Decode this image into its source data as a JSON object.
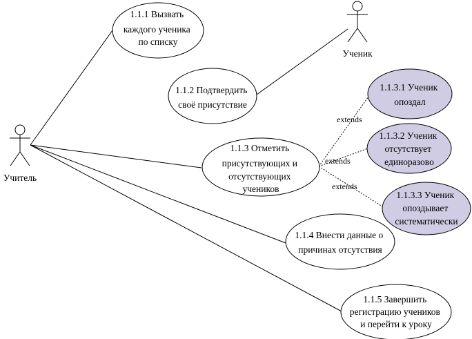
{
  "actors": {
    "teacher": "Учитель",
    "student": "Ученик"
  },
  "use_cases": {
    "uc1": [
      "1.1.1 Вызвать",
      "каждого ученика",
      "по списку"
    ],
    "uc2": [
      "1.1.2 Подтвердить",
      "своё присутствие"
    ],
    "uc3": [
      "1.1.3 Отметить",
      "присутствующих и",
      "отсутствующих",
      "учеников"
    ],
    "uc4": [
      "1.1.4 Внести данные о",
      "причинах отсутствия"
    ],
    "uc5": [
      "1.1.5 Завершить",
      "регистрацию учеников",
      "и перейти к уроку"
    ],
    "ext1": [
      "1.1.3.1 Ученик",
      "опоздал"
    ],
    "ext2": [
      "1.1.3.2 Ученик",
      "отсутствует",
      "единоразово"
    ],
    "ext3": [
      "1.1.3.3 Ученик",
      "опоздывает",
      "систематически"
    ]
  },
  "relations": {
    "extends_1": "extends",
    "extends_2": "extends",
    "extends_3": "extends"
  },
  "colors": {
    "extension_fill": "#cfcce3",
    "base_fill": "#ffffff",
    "stroke": "#000000"
  }
}
